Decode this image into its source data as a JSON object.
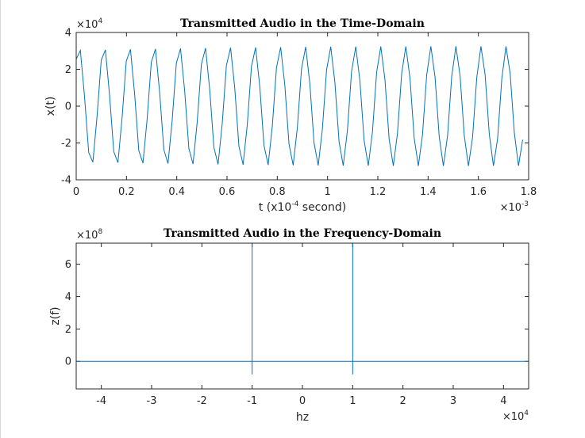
{
  "figure": {
    "background": "#ffffff",
    "line_color": "#0072bd",
    "axis_color": "#262626"
  },
  "chart_data": [
    {
      "type": "line",
      "title": "Transmitted Audio in the Time-Domain",
      "xlabel_main": "t  (x10",
      "xlabel_sup": "-4",
      "xlabel_tail": " second)",
      "ylabel": "x(t)",
      "x_exponent_base": "×10",
      "x_exponent_power": "-3",
      "y_exponent_base": "×10",
      "y_exponent_power": "4",
      "xlim": [
        0,
        1.8
      ],
      "ylim": [
        -4,
        4
      ],
      "x_ticks": [
        0,
        0.2,
        0.4,
        0.6,
        0.8,
        1,
        1.2,
        1.4,
        1.6,
        1.8
      ],
      "x_tick_labels": [
        "0",
        "0.2",
        "0.4",
        "0.6",
        "0.8",
        "1",
        "1.2",
        "1.4",
        "1.6",
        "1.8"
      ],
      "y_ticks": [
        -4,
        -2,
        0,
        2,
        4
      ],
      "y_tick_labels": [
        "-4",
        "-2",
        "0",
        "2",
        "4"
      ],
      "series": [
        {
          "signal": "sinusoid",
          "amplitude": 3.25,
          "period": 0.1,
          "phase_offset_rad": 0.9,
          "x_range": [
            0,
            1.785
          ],
          "sample_interval": 0.0166
        }
      ]
    },
    {
      "type": "line",
      "title": "Transmitted Audio in the Frequency-Domain",
      "xlabel": "hz",
      "ylabel": "z(f)",
      "x_exponent_base": "×10",
      "x_exponent_power": "4",
      "y_exponent_base": "×10",
      "y_exponent_power": "8",
      "xlim": [
        -4.5,
        4.5
      ],
      "ylim": [
        -1.7,
        7.3
      ],
      "x_ticks": [
        -4,
        -3,
        -2,
        -1,
        0,
        1,
        2,
        3,
        4
      ],
      "x_tick_labels": [
        "-4",
        "-3",
        "-2",
        "-1",
        "0",
        "1",
        "2",
        "3",
        "4"
      ],
      "y_ticks": [
        0,
        2,
        4,
        6
      ],
      "y_tick_labels": [
        "0",
        "2",
        "4",
        "6"
      ],
      "series": [
        {
          "baseline": 0,
          "spikes": [
            {
              "x": -1,
              "peak": 7.3,
              "trough": -0.8
            },
            {
              "x": 1,
              "peak": 7.3,
              "trough": -0.8
            }
          ]
        }
      ]
    }
  ]
}
